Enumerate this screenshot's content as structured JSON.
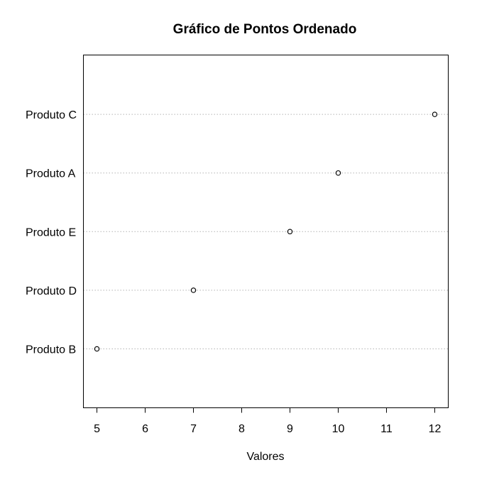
{
  "chart_data": {
    "type": "scatter",
    "title": "Gráfico de Pontos Ordenado",
    "xlabel": "Valores",
    "ylabel": "",
    "categories": [
      "Produto B",
      "Produto D",
      "Produto E",
      "Produto A",
      "Produto C"
    ],
    "values": [
      5,
      7,
      9,
      10,
      12
    ],
    "xlim": [
      4.72,
      12.28
    ],
    "x_ticks": [
      5,
      6,
      7,
      8,
      9,
      10,
      11,
      12
    ],
    "x_tick_labels": [
      "5",
      "6",
      "7",
      "8",
      "9",
      "10",
      "11",
      "12"
    ],
    "grid": "dotted horizontal guide lines per category",
    "point_style": "open circle",
    "colors": {
      "points": "#000000",
      "guides": "#b3b3b3",
      "frame": "#000000"
    }
  }
}
